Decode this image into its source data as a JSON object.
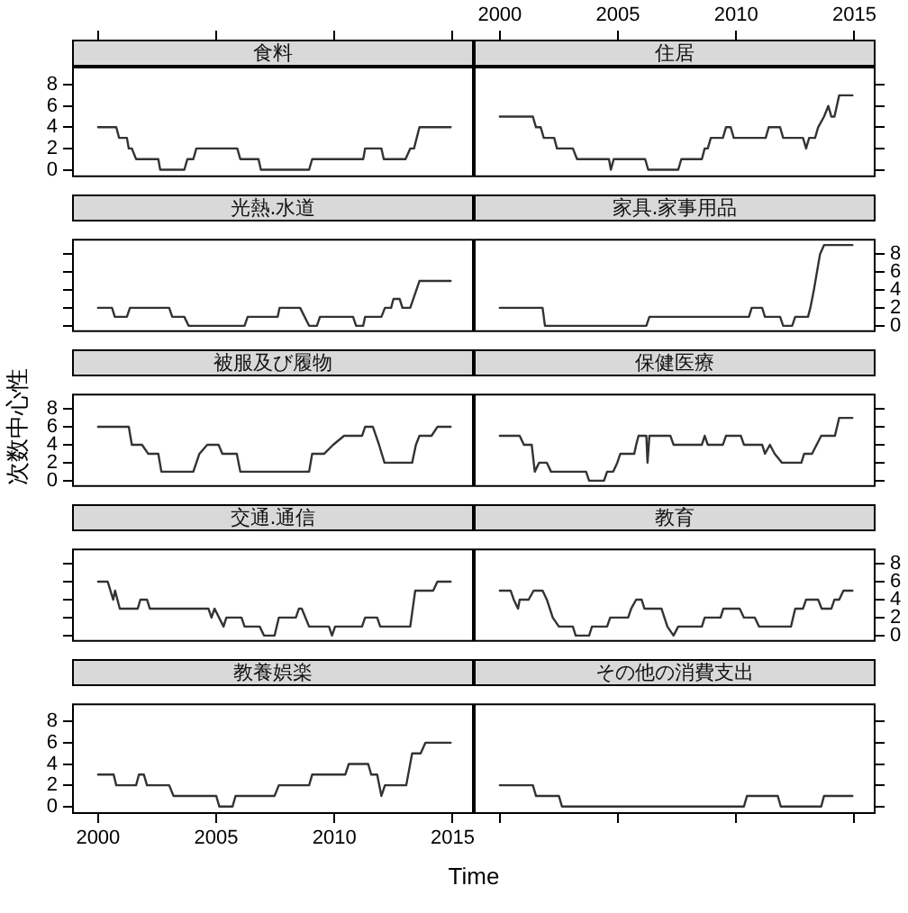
{
  "chart_data": [
    {
      "type": "line",
      "title": "食料",
      "color": "#333333",
      "xlim": [
        1998.9,
        2015.9
      ],
      "xticks": [
        2000,
        2005,
        2010,
        2015
      ],
      "ylim": [
        -0.7,
        9.7
      ],
      "yticks": [
        0,
        2,
        4,
        6,
        8
      ],
      "tick_labels": "y",
      "x": [
        2000,
        2000.77,
        2000.89,
        2001.22,
        2001.3,
        2001.43,
        2001.61,
        2002.55,
        2002.63,
        2003.65,
        2003.78,
        2004.03,
        2004.16,
        2005.89,
        2006.02,
        2006.79,
        2006.89,
        2008.93,
        2009.06,
        2011.22,
        2011.3,
        2011.99,
        2012.09,
        2013.01,
        2013.21,
        2013.37,
        2013.6,
        2014.92
      ],
      "values": [
        4,
        4,
        3,
        3,
        2,
        2,
        1,
        1,
        0,
        0,
        1,
        1,
        2,
        2,
        1,
        1,
        0,
        0,
        1,
        1,
        2,
        2,
        1,
        1,
        2,
        2,
        4,
        4
      ]
    },
    {
      "type": "line",
      "title": "住居",
      "color": "#333333",
      "xlim": [
        1998.9,
        2015.9
      ],
      "xticks": [
        2000,
        2005,
        2010,
        2015
      ],
      "ylim": [
        -0.7,
        9.7
      ],
      "yticks": [
        0,
        2,
        4,
        6,
        8
      ],
      "tick_labels": "x",
      "x": [
        2000,
        2001.4,
        2001.53,
        2001.73,
        2001.86,
        2002.3,
        2002.42,
        2003.09,
        2003.27,
        2004.62,
        2004.7,
        2004.75,
        2004.82,
        2006.15,
        2006.28,
        2007.55,
        2007.68,
        2008.55,
        2008.67,
        2008.8,
        2008.93,
        2009.44,
        2009.57,
        2009.77,
        2009.9,
        2011.25,
        2011.38,
        2011.86,
        2011.99,
        2012.83,
        2012.96,
        2013.09,
        2013.34,
        2013.47,
        2013.72,
        2013.9,
        2014.03,
        2014.16,
        2014.36,
        2014.92
      ],
      "values": [
        5,
        5,
        4,
        4,
        3,
        3,
        2,
        2,
        1,
        1,
        0,
        0,
        1,
        1,
        0,
        0,
        1,
        1,
        2,
        2,
        3,
        3,
        4,
        4,
        3,
        3,
        4,
        4,
        3,
        3,
        2,
        3,
        3,
        4,
        5,
        6,
        5,
        5,
        7,
        7
      ]
    },
    {
      "type": "line",
      "title": "光熱.水道",
      "color": "#333333",
      "xlim": [
        1998.9,
        2015.9
      ],
      "xticks": [
        2000,
        2005,
        2010,
        2015
      ],
      "ylim": [
        -0.7,
        9.7
      ],
      "yticks": [
        0,
        2,
        4,
        6,
        8
      ],
      "tick_labels": false,
      "x": [
        2000,
        2000.59,
        2000.71,
        2001.22,
        2001.35,
        2003.01,
        2003.14,
        2003.65,
        2003.83,
        2006.2,
        2006.33,
        2007.6,
        2007.68,
        2008.55,
        2008.93,
        2009.26,
        2009.39,
        2010.79,
        2010.92,
        2011.22,
        2011.3,
        2011.99,
        2012.14,
        2012.4,
        2012.5,
        2012.76,
        2012.88,
        2013.21,
        2013.6,
        2014.92
      ],
      "values": [
        2,
        2,
        1,
        1,
        2,
        2,
        1,
        1,
        0,
        0,
        1,
        1,
        2,
        2,
        0,
        0,
        1,
        1,
        0,
        0,
        1,
        1,
        2,
        2,
        3,
        3,
        2,
        2,
        5,
        5
      ]
    },
    {
      "type": "line",
      "title": "家具.家事用品",
      "color": "#333333",
      "xlim": [
        1998.9,
        2015.9
      ],
      "xticks": [
        2000,
        2005,
        2010,
        2015
      ],
      "ylim": [
        -0.7,
        9.7
      ],
      "yticks": [
        0,
        2,
        4,
        6,
        8
      ],
      "tick_labels": "y",
      "x": [
        2000,
        2001.81,
        2001.91,
        2006.2,
        2006.33,
        2010.54,
        2010.66,
        2011.1,
        2011.22,
        2011.86,
        2011.99,
        2012.37,
        2012.5,
        2013.04,
        2013.14,
        2013.29,
        2013.55,
        2013.72,
        2014.92
      ],
      "values": [
        2,
        2,
        0,
        0,
        1,
        1,
        2,
        2,
        1,
        1,
        0,
        0,
        1,
        1,
        2,
        4,
        8,
        9,
        9
      ]
    },
    {
      "type": "line",
      "title": "被服及び履物",
      "ylabel": "次数中心性",
      "color": "#333333",
      "xlim": [
        1998.9,
        2015.9
      ],
      "xticks": [
        2000,
        2005,
        2010,
        2015
      ],
      "ylim": [
        -0.7,
        9.7
      ],
      "yticks": [
        0,
        2,
        4,
        6,
        8
      ],
      "tick_labels": "y",
      "x": [
        2000,
        2001.3,
        2001.43,
        2001.86,
        2002.12,
        2002.55,
        2002.68,
        2004.03,
        2004.29,
        2004.62,
        2005.1,
        2005.26,
        2005.87,
        2006.02,
        2008.93,
        2009.06,
        2009.57,
        2009.95,
        2010.41,
        2011.17,
        2011.3,
        2011.63,
        2011.89,
        2012.12,
        2013.29,
        2013.45,
        2013.6,
        2014.11,
        2014.36,
        2014.92
      ],
      "values": [
        6,
        6,
        4,
        4,
        3,
        3,
        1,
        1,
        3,
        4,
        4,
        3,
        3,
        1,
        1,
        3,
        3,
        4,
        5,
        5,
        6,
        6,
        4,
        2,
        2,
        4,
        5,
        5,
        6,
        6
      ]
    },
    {
      "type": "line",
      "title": "保健医療",
      "color": "#333333",
      "xlim": [
        1998.9,
        2015.9
      ],
      "xticks": [
        2000,
        2005,
        2010,
        2015
      ],
      "ylim": [
        -0.7,
        9.7
      ],
      "yticks": [
        0,
        2,
        4,
        6,
        8
      ],
      "tick_labels": false,
      "x": [
        2000,
        2000.84,
        2001.02,
        2001.35,
        2001.48,
        2001.66,
        2001.99,
        2002.17,
        2003.65,
        2003.78,
        2004.41,
        2004.54,
        2004.8,
        2004.97,
        2005.1,
        2005.69,
        2005.77,
        2005.87,
        2006.2,
        2006.25,
        2006.33,
        2007.22,
        2007.35,
        2008.55,
        2008.67,
        2008.8,
        2009.44,
        2009.57,
        2010.2,
        2010.33,
        2011.1,
        2011.22,
        2011.43,
        2011.63,
        2011.94,
        2012.76,
        2012.88,
        2013.21,
        2013.6,
        2014.18,
        2014.36,
        2014.92
      ],
      "values": [
        5,
        5,
        4,
        4,
        1,
        2,
        2,
        1,
        1,
        0,
        0,
        1,
        1,
        2,
        3,
        3,
        4,
        5,
        5,
        2,
        5,
        5,
        4,
        4,
        5,
        4,
        4,
        5,
        5,
        4,
        4,
        3,
        4,
        3,
        2,
        2,
        3,
        3,
        5,
        5,
        7,
        7
      ]
    },
    {
      "type": "line",
      "title": "交通.通信",
      "color": "#333333",
      "xlim": [
        1998.9,
        2015.9
      ],
      "xticks": [
        2000,
        2005,
        2010,
        2015
      ],
      "ylim": [
        -0.7,
        9.7
      ],
      "yticks": [
        0,
        2,
        4,
        6,
        8
      ],
      "tick_labels": false,
      "x": [
        2000,
        2000.41,
        2000.64,
        2000.72,
        2000.92,
        2001.68,
        2001.79,
        2002.07,
        2002.19,
        2004.67,
        2004.8,
        2004.93,
        2005.31,
        2005.43,
        2006.07,
        2006.2,
        2006.84,
        2007.02,
        2007.47,
        2007.65,
        2008.37,
        2008.5,
        2008.62,
        2008.93,
        2009.77,
        2009.9,
        2010.03,
        2011.17,
        2011.3,
        2011.81,
        2011.94,
        2013.21,
        2013.42,
        2014.18,
        2014.36,
        2014.92
      ],
      "values": [
        6,
        6,
        4,
        5,
        3,
        3,
        4,
        4,
        3,
        3,
        2,
        3,
        1,
        2,
        2,
        1,
        1,
        0,
        0,
        2,
        2,
        3,
        3,
        1,
        1,
        0,
        1,
        1,
        2,
        2,
        1,
        1,
        5,
        5,
        6,
        6
      ]
    },
    {
      "type": "line",
      "title": "教育",
      "color": "#333333",
      "xlim": [
        1998.9,
        2015.9
      ],
      "xticks": [
        2000,
        2005,
        2010,
        2015
      ],
      "ylim": [
        -0.7,
        9.7
      ],
      "yticks": [
        0,
        2,
        4,
        6,
        8
      ],
      "tick_labels": "y",
      "x": [
        2000,
        2000.46,
        2000.59,
        2000.77,
        2000.84,
        2001.22,
        2001.43,
        2001.81,
        2001.99,
        2002.24,
        2002.5,
        2003.09,
        2003.21,
        2003.78,
        2003.9,
        2004.54,
        2004.67,
        2005.43,
        2005.56,
        2005.77,
        2006.0,
        2006.12,
        2006.84,
        2007.09,
        2007.35,
        2007.55,
        2008.55,
        2008.67,
        2009.34,
        2009.46,
        2010.15,
        2010.33,
        2010.79,
        2010.97,
        2012.32,
        2012.5,
        2012.83,
        2012.96,
        2013.47,
        2013.62,
        2014.03,
        2014.16,
        2014.36,
        2014.54,
        2014.92
      ],
      "values": [
        5,
        5,
        4,
        3,
        4,
        4,
        5,
        5,
        4,
        2,
        1,
        1,
        0,
        0,
        1,
        1,
        2,
        2,
        3,
        4,
        4,
        3,
        3,
        1,
        0,
        1,
        1,
        2,
        2,
        3,
        3,
        2,
        2,
        1,
        1,
        3,
        3,
        4,
        4,
        3,
        3,
        4,
        4,
        5,
        5
      ]
    },
    {
      "type": "line",
      "title": "教養娯楽",
      "xlabel": "Time",
      "color": "#333333",
      "xlim": [
        1998.9,
        2015.9
      ],
      "xticks": [
        2000,
        2005,
        2010,
        2015
      ],
      "ylim": [
        -0.7,
        9.7
      ],
      "yticks": [
        0,
        2,
        4,
        6,
        8
      ],
      "x": [
        2000,
        2000.66,
        2000.77,
        2001.61,
        2001.73,
        2001.94,
        2002.07,
        2003.01,
        2003.19,
        2005.0,
        2005.13,
        2005.69,
        2005.82,
        2007.47,
        2007.65,
        2008.93,
        2009.06,
        2010.46,
        2010.61,
        2011.43,
        2011.56,
        2011.81,
        2011.99,
        2012.14,
        2013.04,
        2013.29,
        2013.65,
        2013.85,
        2014.92
      ],
      "values": [
        3,
        3,
        2,
        2,
        3,
        3,
        2,
        2,
        1,
        1,
        0,
        0,
        1,
        1,
        2,
        2,
        3,
        3,
        4,
        4,
        3,
        3,
        1,
        2,
        2,
        5,
        5,
        6,
        6
      ]
    },
    {
      "type": "line",
      "title": "その他の消費支出",
      "color": "#333333",
      "xlim": [
        1998.9,
        2015.9
      ],
      "xticks": [
        2000,
        2005,
        2010,
        2015
      ],
      "ylim": [
        -0.7,
        9.7
      ],
      "yticks": [
        0,
        2,
        4,
        6,
        8
      ],
      "tick_labels": false,
      "x": [
        2000,
        2001.4,
        2001.53,
        2002.5,
        2002.63,
        2010.33,
        2010.46,
        2011.76,
        2011.89,
        2013.6,
        2013.72,
        2014.92
      ],
      "values": [
        2,
        2,
        1,
        1,
        0,
        0,
        1,
        1,
        0,
        0,
        1,
        1
      ]
    }
  ]
}
